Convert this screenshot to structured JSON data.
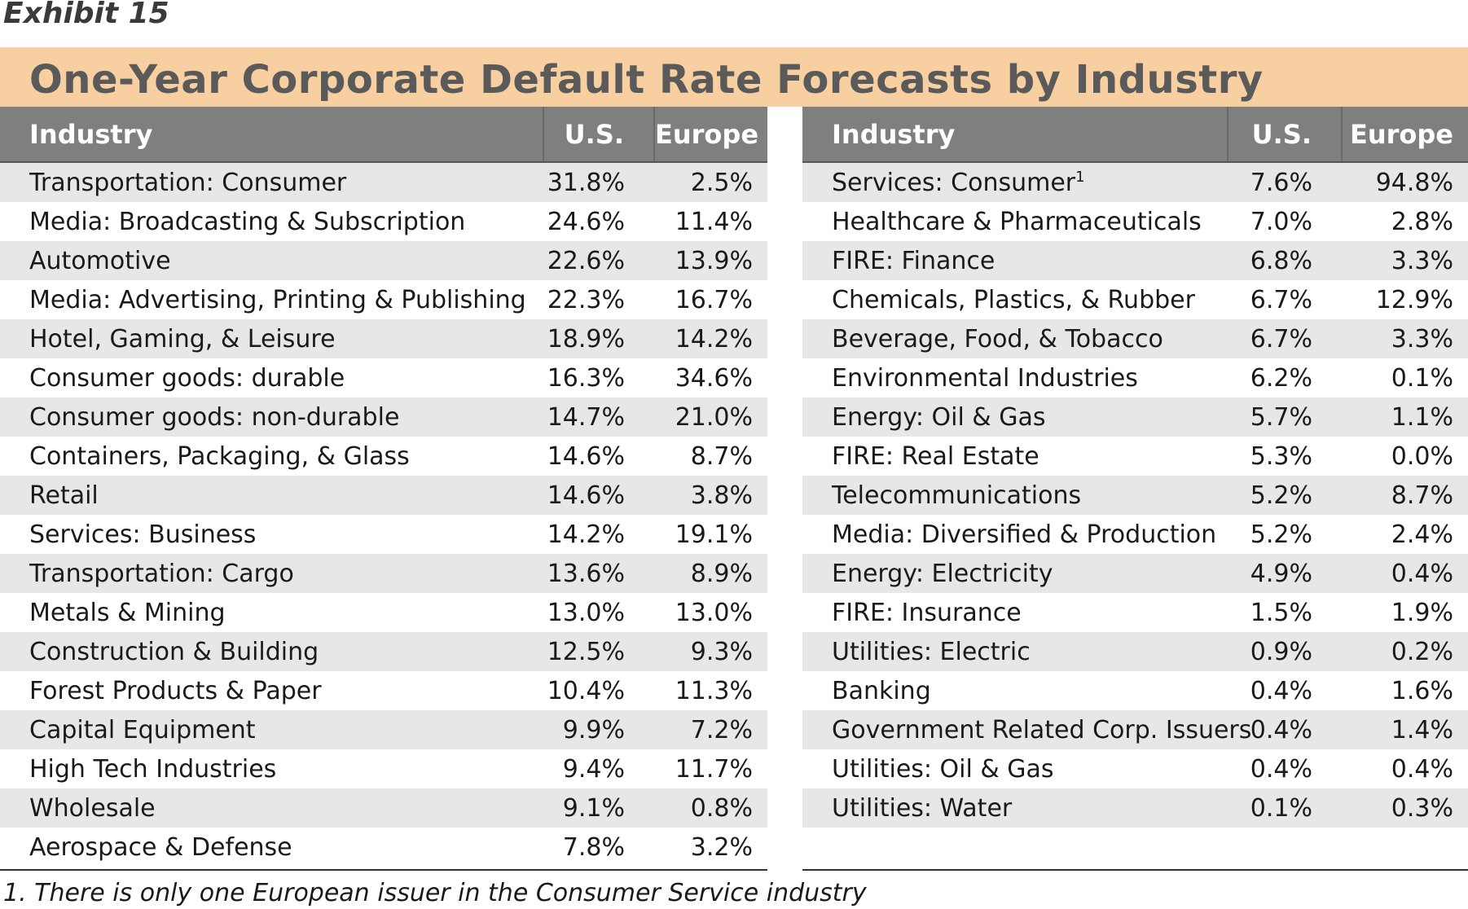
{
  "exhibit": "Exhibit 15",
  "title": "One-Year Corporate Default Rate Forecasts by Industry",
  "headers": {
    "industry": "Industry",
    "us": "U.S.",
    "europe": "Europe"
  },
  "left_rows": [
    {
      "industry": "Transportation: Consumer",
      "us": "31.8%",
      "europe": "2.5%"
    },
    {
      "industry": "Media: Broadcasting & Subscription",
      "us": "24.6%",
      "europe": "11.4%"
    },
    {
      "industry": "Automotive",
      "us": "22.6%",
      "europe": "13.9%"
    },
    {
      "industry": "Media: Advertising, Printing & Publishing",
      "us": "22.3%",
      "europe": "16.7%"
    },
    {
      "industry": "Hotel, Gaming, & Leisure",
      "us": "18.9%",
      "europe": "14.2%"
    },
    {
      "industry": "Consumer goods: durable",
      "us": "16.3%",
      "europe": "34.6%"
    },
    {
      "industry": "Consumer goods: non-durable",
      "us": "14.7%",
      "europe": "21.0%"
    },
    {
      "industry": "Containers, Packaging, & Glass",
      "us": "14.6%",
      "europe": "8.7%"
    },
    {
      "industry": "Retail",
      "us": "14.6%",
      "europe": "3.8%"
    },
    {
      "industry": "Services: Business",
      "us": "14.2%",
      "europe": "19.1%"
    },
    {
      "industry": "Transportation: Cargo",
      "us": "13.6%",
      "europe": "8.9%"
    },
    {
      "industry": "Metals & Mining",
      "us": "13.0%",
      "europe": "13.0%"
    },
    {
      "industry": "Construction & Building",
      "us": "12.5%",
      "europe": "9.3%"
    },
    {
      "industry": "Forest Products & Paper",
      "us": "10.4%",
      "europe": "11.3%"
    },
    {
      "industry": "Capital Equipment",
      "us": "9.9%",
      "europe": "7.2%"
    },
    {
      "industry": "High Tech Industries",
      "us": "9.4%",
      "europe": "11.7%"
    },
    {
      "industry": "Wholesale",
      "us": "9.1%",
      "europe": "0.8%"
    },
    {
      "industry": "Aerospace & Defense",
      "us": "7.8%",
      "europe": "3.2%"
    }
  ],
  "right_rows": [
    {
      "industry": "Services: Consumer",
      "sup": "1",
      "us": "7.6%",
      "europe": "94.8%"
    },
    {
      "industry": "Healthcare & Pharmaceuticals",
      "us": "7.0%",
      "europe": "2.8%"
    },
    {
      "industry": "FIRE: Finance",
      "us": "6.8%",
      "europe": "3.3%"
    },
    {
      "industry": "Chemicals, Plastics, & Rubber",
      "us": "6.7%",
      "europe": "12.9%"
    },
    {
      "industry": "Beverage, Food, & Tobacco",
      "us": "6.7%",
      "europe": "3.3%"
    },
    {
      "industry": "Environmental Industries",
      "us": "6.2%",
      "europe": "0.1%"
    },
    {
      "industry": "Energy: Oil & Gas",
      "us": "5.7%",
      "europe": "1.1%"
    },
    {
      "industry": "FIRE: Real Estate",
      "us": "5.3%",
      "europe": "0.0%"
    },
    {
      "industry": "Telecommunications",
      "us": "5.2%",
      "europe": "8.7%"
    },
    {
      "industry": "Media: Diversified & Production",
      "us": "5.2%",
      "europe": "2.4%"
    },
    {
      "industry": "Energy: Electricity",
      "us": "4.9%",
      "europe": "0.4%"
    },
    {
      "industry": "FIRE: Insurance",
      "us": "1.5%",
      "europe": "1.9%"
    },
    {
      "industry": "Utilities: Electric",
      "us": "0.9%",
      "europe": "0.2%"
    },
    {
      "industry": "Banking",
      "us": "0.4%",
      "europe": "1.6%"
    },
    {
      "industry": "Government Related Corp. Issuers",
      "us": "0.4%",
      "europe": "1.4%"
    },
    {
      "industry": "Utilities: Oil & Gas",
      "us": "0.4%",
      "europe": "0.4%"
    },
    {
      "industry": "Utilities: Water",
      "us": "0.1%",
      "europe": "0.3%"
    }
  ],
  "footnote": "1. There is only one European issuer in the Consumer Service industry"
}
